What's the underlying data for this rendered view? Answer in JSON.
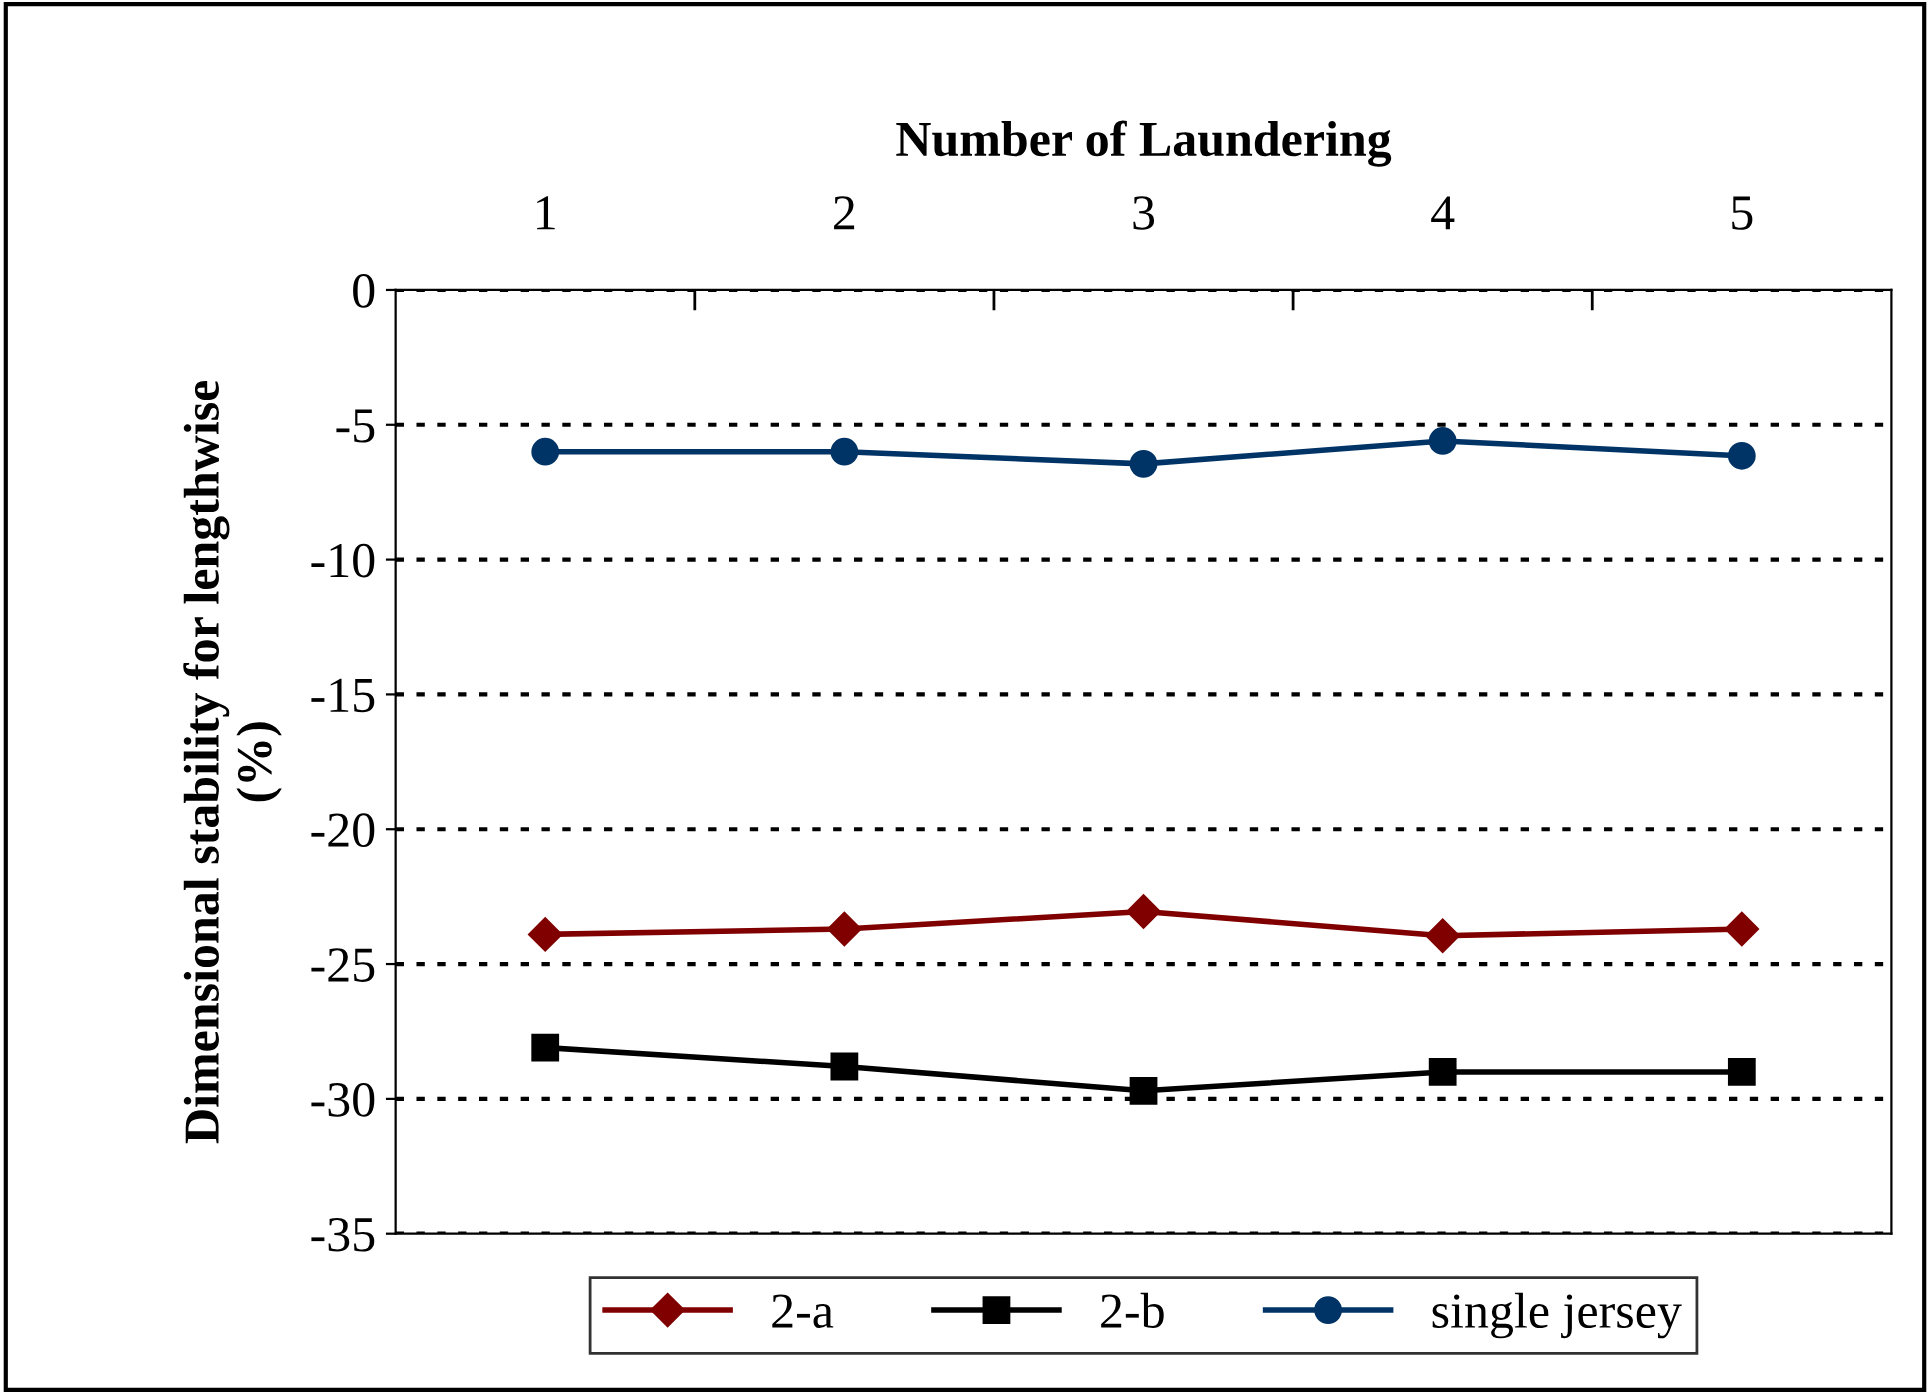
{
  "chart_data": {
    "type": "line",
    "xlabel": "Number of Laundering",
    "ylabel": "Dimensional stability for lengthwise\n(%)",
    "categories": [
      "1",
      "2",
      "3",
      "4",
      "5"
    ],
    "series": [
      {
        "name": "2-a",
        "color": "#800000",
        "values": [
          -23.9,
          -23.7,
          -23.05,
          -23.95,
          -23.7
        ],
        "marker": "diamond"
      },
      {
        "name": "2-b",
        "color": "#000000",
        "values": [
          -28.1,
          -28.8,
          -29.7,
          -29.0,
          -29.0
        ],
        "marker": "square"
      },
      {
        "name": "single jersey",
        "color": "#003366",
        "values": [
          -6.0,
          -6.0,
          -6.45,
          -5.6,
          -6.15
        ],
        "marker": "circle"
      }
    ],
    "ylim": [
      -35,
      0
    ],
    "yticks": [
      -35,
      -30,
      -25,
      -20,
      -15,
      -10,
      -5,
      0
    ],
    "grid": "y",
    "legend": "bottom",
    "line_style": "solid"
  }
}
